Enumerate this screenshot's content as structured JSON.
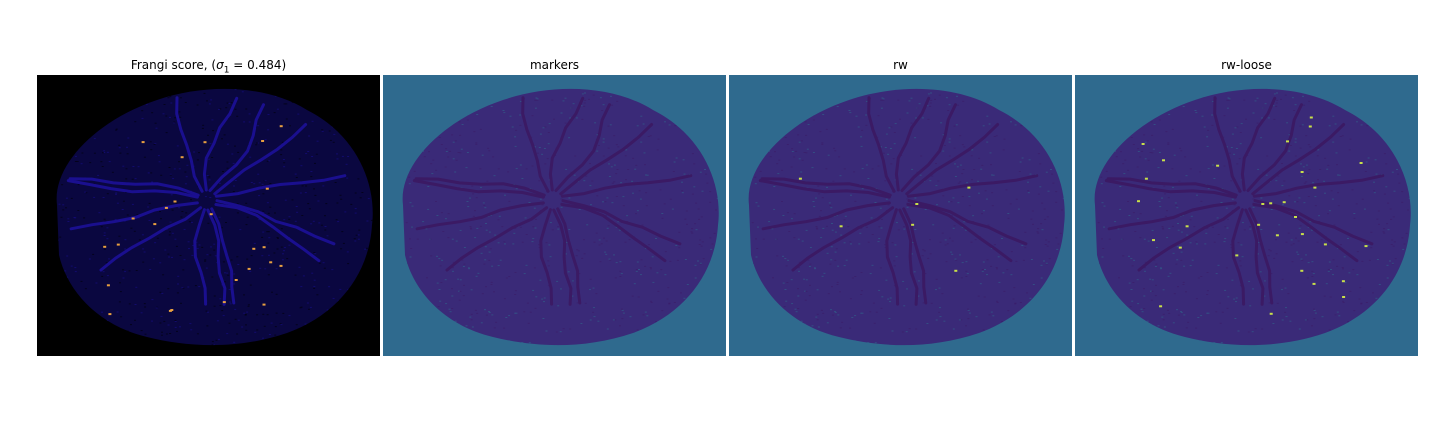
{
  "panels": [
    {
      "title_prefix": "Frangi score, (",
      "title_sigma": "σ",
      "title_sub": "1",
      "title_suffix": " = 0.484)",
      "colormap": "gnuplot2",
      "background": "#000000"
    },
    {
      "title": "markers",
      "colormap": "viridis",
      "background": "#2f6a8e"
    },
    {
      "title": "rw",
      "colormap": "viridis",
      "background": "#2f6a8e"
    },
    {
      "title": "rw-loose",
      "colormap": "viridis",
      "background": "#2f6a8e"
    }
  ],
  "colors": {
    "frangi_background": "#000000",
    "frangi_vessel": "#1a0f8f",
    "frangi_highlight": "#e8a040",
    "label_background": "#2f6a8e",
    "label_vessel": "#3b1a64",
    "label_highlight": "#c8e04a"
  }
}
